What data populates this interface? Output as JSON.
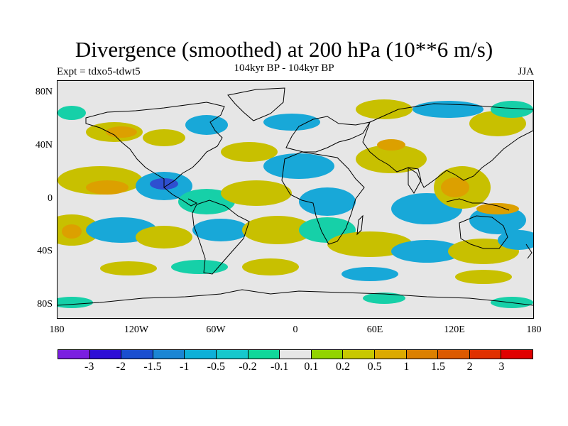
{
  "figure": {
    "title": "Divergence (smoothed) at 200 hPa (10**6 m/s)",
    "experiment": "Expt = tdxo5-tdwt5",
    "period": "104kyr BP - 104kyr BP",
    "season": "JJA"
  },
  "map": {
    "lat_labels": [
      "80N",
      "40N",
      "0",
      "40S",
      "80S"
    ],
    "lon_labels": [
      "180",
      "120W",
      "60W",
      "0",
      "60E",
      "120E",
      "180"
    ]
  },
  "colorbar": {
    "colors": [
      "#7b1fe0",
      "#2e0fd6",
      "#1a4fd0",
      "#1b86d4",
      "#0eb0d8",
      "#16c8cc",
      "#10d89a",
      "#e6e6e6",
      "#92d400",
      "#c8c800",
      "#dcaa00",
      "#dc8000",
      "#dc5a00",
      "#e03000",
      "#e00000"
    ],
    "labels": [
      "-3",
      "-2",
      "-1.5",
      "-1",
      "-0.5",
      "-0.2",
      "-0.1",
      "0.1",
      "0.2",
      "0.5",
      "1",
      "1.5",
      "2",
      "3"
    ]
  },
  "colors": {
    "neg_strong": "#2e4fd0",
    "neg_mid": "#18a8d8",
    "neg_weak": "#16d0a8",
    "neutral": "#e6e6e6",
    "pos_weak": "#a8d400",
    "pos_mid": "#c8c000",
    "pos_strong": "#dca000",
    "pos_vstrong": "#dc7a00"
  }
}
